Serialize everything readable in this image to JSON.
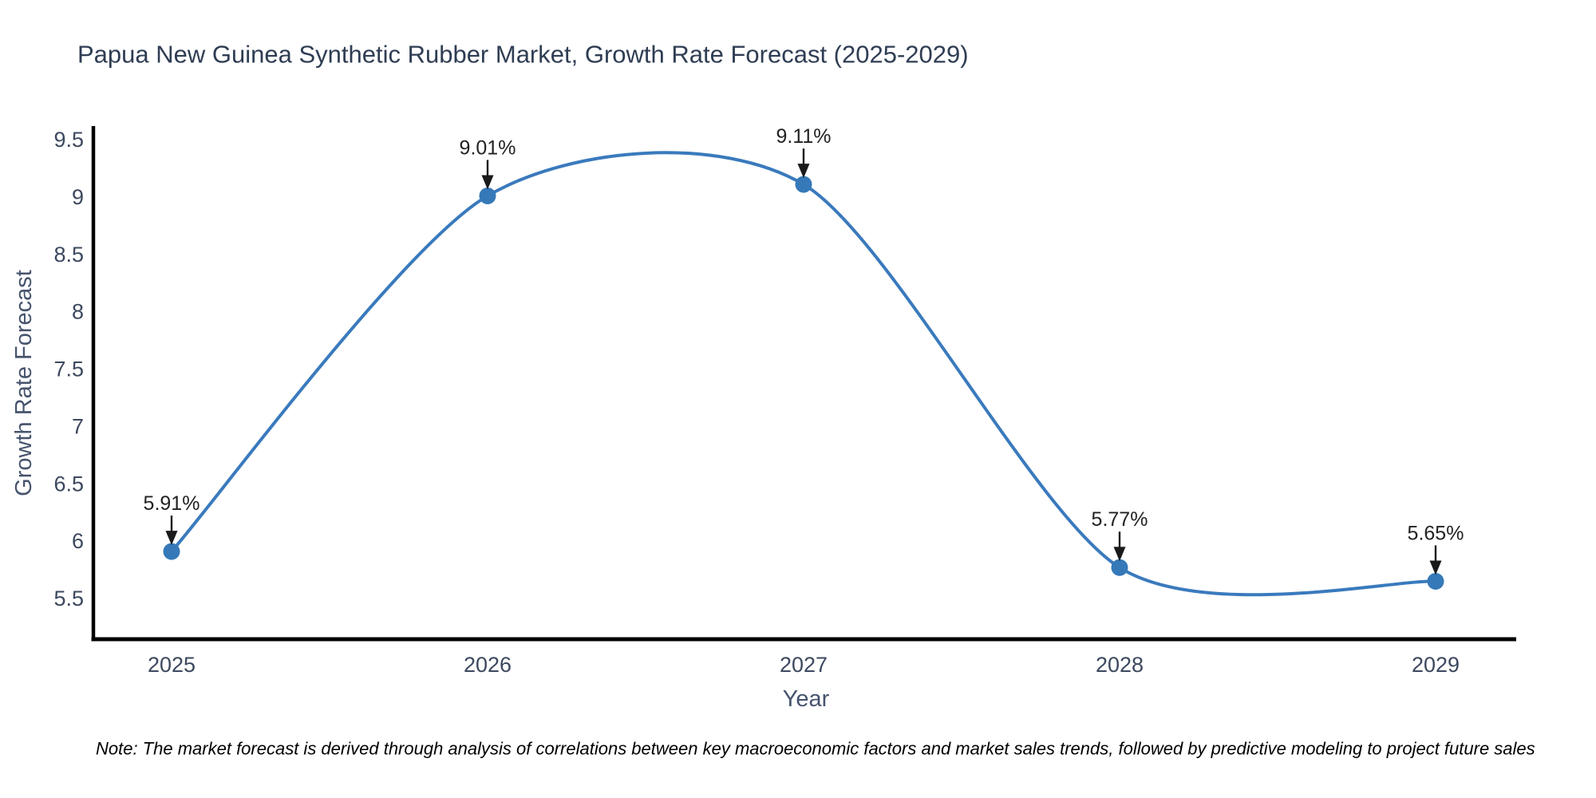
{
  "note": "Note: The market forecast is derived through analysis of correlations between key macroeconomic factors and market sales trends, followed by predictive modeling to project future sales",
  "chart_data": {
    "type": "line",
    "title": "Papua New Guinea Synthetic Rubber Market, Growth Rate Forecast (2025-2029)",
    "xlabel": "Year",
    "ylabel": "Growth Rate Forecast",
    "categories": [
      2025,
      2026,
      2027,
      2028,
      2029
    ],
    "values": [
      5.91,
      9.01,
      9.11,
      5.77,
      5.65
    ],
    "point_labels": [
      "5.91%",
      "9.01%",
      "9.11%",
      "5.77%",
      "5.65%"
    ],
    "yticks": [
      5.5,
      6,
      6.5,
      7,
      7.5,
      8,
      8.5,
      9,
      9.5
    ],
    "ylim": [
      5.14,
      9.69
    ],
    "xlim": [
      2024.75,
      2029.27
    ],
    "line_shape": "spline",
    "grid": false,
    "legend_position": "none",
    "colors": {
      "line": "#3a7abd",
      "marker": "#3579b8",
      "title_text": "#2f3d53",
      "tick_text": "#3c485e",
      "axis_title_text": "#46536d",
      "annotation_text": "#222222",
      "annotation_arrow": "#1a1a1a",
      "axis_line": "#000000",
      "note_text": "#000000",
      "background": "#ffffff"
    }
  }
}
